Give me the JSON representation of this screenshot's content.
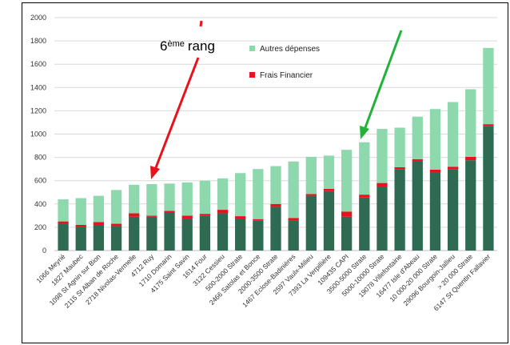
{
  "chart_data": {
    "type": "bar",
    "stacked": true,
    "ylim": [
      0,
      2000
    ],
    "yticks": [
      0,
      200,
      400,
      600,
      800,
      1000,
      1200,
      1400,
      1600,
      1800,
      2000
    ],
    "grid": "horizontal",
    "legend_position": "top-center",
    "categories": [
      "1066 Meyrié",
      "1827 Maubec",
      "1098 St Agnin sur Bion",
      "2115 St Alban de Roche",
      "2718 Nivolas-Vermelle",
      "4712 Ruy",
      "1710 Domarin",
      "4175 Saint Savin",
      "1614 Four",
      "3122 Cessieu",
      "500-2000 Strate",
      "2466 Satolas et Bonce",
      "2000-3500 Strate",
      "1467 Eclose-Badinières",
      "2597 Vaulx-Milieu",
      "7393 La Verpillière",
      "109435 CAPI",
      "3500-5000 Strate",
      "5000-10000 Strate",
      "19078 Villefontaine",
      "16477 Isle d'Abeau",
      "10 000-20 000 Strate",
      "29096 Bourgoin-Jallieu",
      "> 20 000 Strate",
      "6147 St Quentin Fallavier"
    ],
    "series": [
      {
        "name": "",
        "color": "#2f6b53",
        "values": [
          230,
          200,
          220,
          210,
          290,
          290,
          330,
          275,
          300,
          320,
          275,
          260,
          375,
          255,
          470,
          510,
          290,
          455,
          550,
          700,
          770,
          670,
          700,
          775,
          1070
        ]
      },
      {
        "name": "Frais Financier",
        "color": "#e8121c",
        "values": [
          20,
          20,
          25,
          20,
          30,
          10,
          10,
          25,
          15,
          30,
          20,
          10,
          25,
          25,
          15,
          20,
          45,
          25,
          30,
          15,
          15,
          25,
          20,
          30,
          15
        ]
      },
      {
        "name": "Autres dépenses",
        "color": "#8ed8ae",
        "values": [
          190,
          230,
          225,
          290,
          245,
          270,
          235,
          285,
          285,
          270,
          370,
          430,
          325,
          485,
          320,
          285,
          530,
          450,
          465,
          340,
          365,
          520,
          555,
          580,
          655
        ]
      }
    ],
    "annotations": [
      {
        "text_main": "6",
        "text_sup": "ème",
        "text_rest": "rang"
      }
    ],
    "colors": {
      "red_arrow": "#e8121c",
      "green_arrow": "#21b23a",
      "grid": "#d9d9d9"
    }
  }
}
